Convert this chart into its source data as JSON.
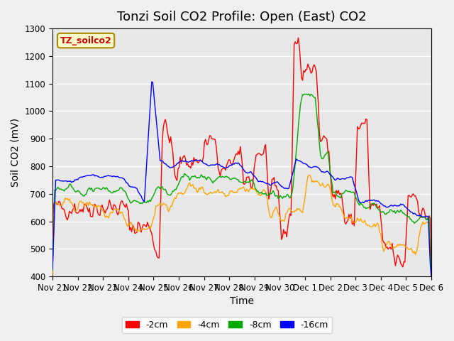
{
  "title": "Tonzi Soil CO2 Profile: Open (East) CO2",
  "xlabel": "Time",
  "ylabel": "Soil CO2 (mV)",
  "ylim": [
    400,
    1300
  ],
  "yticks": [
    400,
    500,
    600,
    700,
    800,
    900,
    1000,
    1100,
    1200,
    1300
  ],
  "colors": {
    "-2cm": "#ff0000",
    "-4cm": "#ffa500",
    "-8cm": "#00aa00",
    "-16cm": "#0000ff"
  },
  "legend_label": "TZ_soilco2",
  "legend_box_color": "#ffffcc",
  "legend_box_edge": "#aa8800",
  "background_color": "#e8e8e8",
  "grid_color": "#ffffff",
  "xtick_labels": [
    "Nov 21",
    "Nov 22",
    "Nov 23",
    "Nov 24",
    "Nov 25",
    "Nov 26",
    "Nov 27",
    "Nov 28",
    "Nov 29",
    "Nov 30",
    "Dec 1",
    "Dec 2",
    "Dec 3",
    "Dec 4",
    "Dec 5",
    "Dec 6"
  ],
  "title_fontsize": 13,
  "axis_fontsize": 10,
  "tick_fontsize": 8.5
}
